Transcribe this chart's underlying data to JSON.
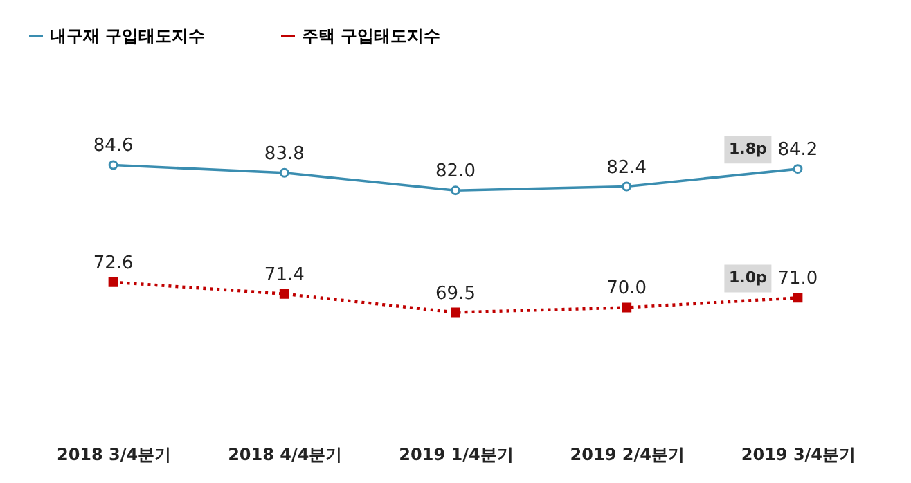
{
  "chart_data": {
    "type": "line",
    "categories": [
      "2018 3/4분기",
      "2018 4/4분기",
      "2019 1/4분기",
      "2019 2/4분기",
      "2019 3/4분기"
    ],
    "series": [
      {
        "name": "내구재 구입태도지수",
        "color": "#3a8db0",
        "values": [
          84.6,
          83.8,
          82.0,
          82.4,
          84.2
        ],
        "value_labels": [
          "84.6",
          "83.8",
          "82.0",
          "82.4",
          "84.2"
        ],
        "marker": "circle",
        "line_style": "solid"
      },
      {
        "name": "주택 구입태도지수",
        "color": "#c00000",
        "values": [
          72.6,
          71.4,
          69.5,
          70.0,
          71.0
        ],
        "value_labels": [
          "72.6",
          "71.4",
          "69.5",
          "70.0",
          "71.0"
        ],
        "marker": "square",
        "line_style": "dotted"
      }
    ],
    "tick_labels": "x",
    "legend": "top",
    "grid": false,
    "annotations": [
      "1.8p",
      "1.0p"
    ]
  }
}
